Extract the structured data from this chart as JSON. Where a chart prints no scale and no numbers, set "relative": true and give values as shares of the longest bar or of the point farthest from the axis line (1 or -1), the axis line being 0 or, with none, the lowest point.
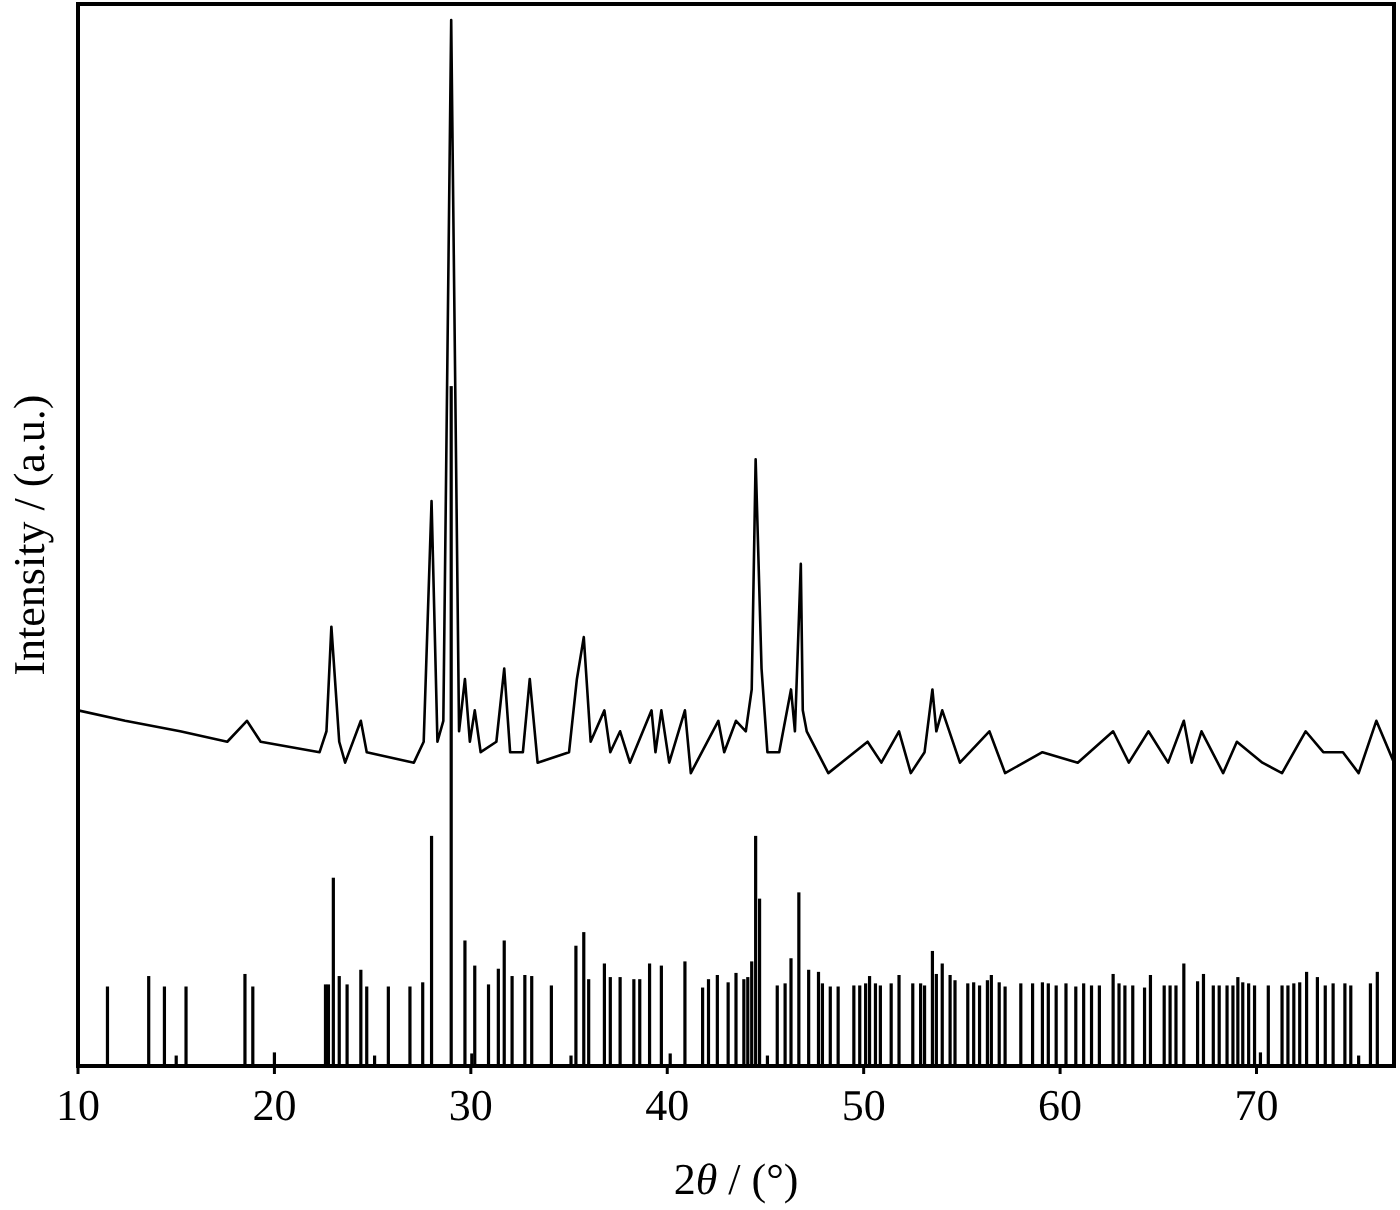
{
  "chart_data": {
    "type": "line",
    "xlabel": "2θ / (°)",
    "ylabel": "Intensity / (a.u.)",
    "relative": true,
    "xlim": [
      10,
      77
    ],
    "xticks": [
      10,
      20,
      30,
      40,
      50,
      60,
      70
    ],
    "marker": "none",
    "line_style": "solid",
    "grid": false,
    "series": [
      {
        "color": "#000000",
        "x": [
          10.0,
          12.4,
          15.2,
          17.6,
          18.6,
          19.3,
          22.3,
          22.65,
          22.9,
          23.3,
          23.6,
          24.4,
          24.7,
          27.1,
          27.6,
          28.0,
          28.3,
          28.6,
          29.0,
          29.4,
          29.7,
          29.95,
          30.2,
          30.5,
          31.3,
          31.7,
          32.0,
          32.65,
          33.0,
          33.4,
          35.0,
          35.4,
          35.75,
          36.1,
          36.8,
          37.1,
          37.6,
          38.1,
          39.2,
          39.4,
          39.7,
          40.1,
          40.9,
          41.2,
          42.6,
          42.9,
          43.5,
          44.0,
          44.3,
          44.5,
          44.8,
          45.1,
          45.7,
          46.3,
          46.5,
          46.8,
          46.9,
          47.1,
          48.2,
          50.2,
          50.9,
          51.8,
          52.4,
          53.1,
          53.5,
          53.7,
          54.0,
          54.9,
          56.4,
          57.2,
          59.1,
          60.9,
          62.7,
          63.5,
          64.5,
          65.5,
          66.3,
          66.7,
          67.2,
          68.3,
          69.0,
          70.3,
          71.3,
          72.5,
          73.4,
          74.4,
          75.2,
          76.1,
          77.0
        ],
        "values": [
          0.34,
          0.33,
          0.32,
          0.31,
          0.33,
          0.31,
          0.3,
          0.32,
          0.42,
          0.31,
          0.29,
          0.33,
          0.3,
          0.29,
          0.31,
          0.54,
          0.31,
          0.33,
          1.0,
          0.32,
          0.37,
          0.31,
          0.34,
          0.3,
          0.31,
          0.38,
          0.3,
          0.3,
          0.37,
          0.29,
          0.3,
          0.37,
          0.41,
          0.31,
          0.34,
          0.3,
          0.32,
          0.29,
          0.34,
          0.3,
          0.34,
          0.29,
          0.34,
          0.28,
          0.33,
          0.3,
          0.33,
          0.32,
          0.36,
          0.58,
          0.38,
          0.3,
          0.3,
          0.36,
          0.32,
          0.48,
          0.34,
          0.32,
          0.28,
          0.31,
          0.29,
          0.32,
          0.28,
          0.3,
          0.36,
          0.32,
          0.34,
          0.29,
          0.32,
          0.28,
          0.3,
          0.29,
          0.32,
          0.29,
          0.32,
          0.29,
          0.33,
          0.29,
          0.32,
          0.28,
          0.31,
          0.29,
          0.28,
          0.32,
          0.3,
          0.3,
          0.28,
          0.33,
          0.29
        ]
      },
      {
        "type": "bar",
        "color": "#000000",
        "x": [
          11.5,
          13.6,
          14.4,
          15.0,
          15.5,
          18.5,
          18.9,
          20.0,
          22.6,
          22.75,
          23.0,
          23.3,
          23.7,
          24.4,
          24.7,
          25.1,
          25.8,
          26.9,
          27.55,
          28.0,
          29.0,
          29.7,
          30.05,
          30.2,
          30.9,
          31.4,
          31.7,
          32.1,
          32.75,
          33.1,
          34.1,
          35.1,
          35.35,
          35.75,
          36.0,
          36.8,
          37.1,
          37.6,
          38.3,
          38.6,
          39.1,
          39.7,
          40.15,
          40.9,
          41.8,
          42.1,
          42.55,
          43.1,
          43.5,
          43.9,
          44.1,
          44.3,
          44.5,
          44.7,
          45.1,
          45.6,
          46.0,
          46.3,
          46.7,
          47.2,
          47.7,
          47.9,
          48.3,
          48.7,
          49.5,
          49.8,
          50.1,
          50.3,
          50.6,
          50.85,
          51.4,
          51.8,
          52.5,
          52.9,
          53.1,
          53.5,
          53.7,
          54.0,
          54.4,
          54.65,
          55.3,
          55.6,
          55.9,
          56.3,
          56.5,
          56.9,
          57.2,
          58.0,
          58.6,
          59.1,
          59.4,
          59.8,
          60.3,
          60.8,
          61.2,
          61.6,
          62.0,
          62.7,
          63.0,
          63.3,
          63.7,
          64.3,
          64.6,
          65.3,
          65.6,
          65.9,
          66.3,
          67.0,
          67.3,
          67.8,
          68.1,
          68.5,
          68.8,
          69.05,
          69.3,
          69.6,
          69.9,
          70.2,
          70.6,
          71.3,
          71.6,
          71.9,
          72.2,
          72.55,
          73.1,
          73.5,
          73.9,
          74.5,
          74.8,
          75.2,
          75.8,
          76.15
        ],
        "values": [
          0.076,
          0.086,
          0.076,
          0.01,
          0.076,
          0.088,
          0.076,
          0.013,
          0.078,
          0.078,
          0.18,
          0.086,
          0.078,
          0.092,
          0.076,
          0.01,
          0.076,
          0.076,
          0.08,
          0.22,
          0.65,
          0.12,
          0.012,
          0.096,
          0.078,
          0.093,
          0.12,
          0.086,
          0.087,
          0.086,
          0.077,
          0.01,
          0.115,
          0.128,
          0.083,
          0.098,
          0.085,
          0.085,
          0.083,
          0.083,
          0.098,
          0.096,
          0.012,
          0.1,
          0.075,
          0.083,
          0.087,
          0.08,
          0.089,
          0.083,
          0.085,
          0.1,
          0.22,
          0.16,
          0.01,
          0.077,
          0.079,
          0.103,
          0.166,
          0.092,
          0.09,
          0.079,
          0.076,
          0.076,
          0.077,
          0.077,
          0.079,
          0.086,
          0.079,
          0.077,
          0.079,
          0.087,
          0.079,
          0.079,
          0.077,
          0.11,
          0.088,
          0.098,
          0.087,
          0.082,
          0.079,
          0.08,
          0.077,
          0.082,
          0.087,
          0.08,
          0.076,
          0.079,
          0.079,
          0.08,
          0.079,
          0.077,
          0.079,
          0.076,
          0.079,
          0.077,
          0.077,
          0.088,
          0.079,
          0.077,
          0.077,
          0.075,
          0.087,
          0.077,
          0.077,
          0.077,
          0.098,
          0.081,
          0.088,
          0.077,
          0.077,
          0.077,
          0.077,
          0.085,
          0.08,
          0.079,
          0.077,
          0.013,
          0.077,
          0.077,
          0.077,
          0.079,
          0.08,
          0.09,
          0.085,
          0.077,
          0.079,
          0.079,
          0.077,
          0.01,
          0.079,
          0.09
        ]
      }
    ]
  }
}
